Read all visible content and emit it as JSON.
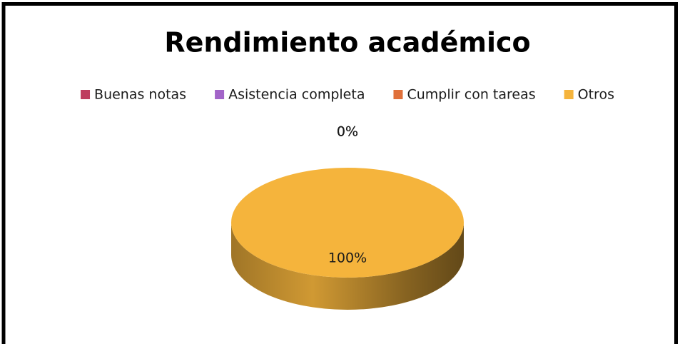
{
  "chart_data": {
    "type": "pie3d",
    "title": "Rendimiento académico",
    "categories": [
      "Buenas notas",
      "Asistencia completa",
      "Cumplir con tareas",
      "Otros"
    ],
    "values": [
      0,
      0,
      0,
      100
    ],
    "value_labels": [
      "0%",
      "0%",
      "0%",
      "100%"
    ],
    "colors": [
      "#be3b5e",
      "#a264c8",
      "#e0703a",
      "#f5b43c"
    ],
    "legend": "top"
  }
}
